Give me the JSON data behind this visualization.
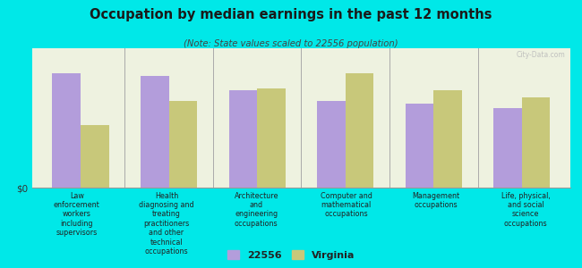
{
  "title": "Occupation by median earnings in the past 12 months",
  "subtitle": "(Note: State values scaled to 22556 population)",
  "background_color": "#00e8e8",
  "plot_bg_color": "#eef2e0",
  "plot_bg_top": "#f5f8ec",
  "categories": [
    "Law\nenforcement\nworkers\nincluding\nsupervisors",
    "Health\ndiagnosing and\ntreating\npractitioners\nand other\ntechnical\noccupations",
    "Architecture\nand\nengineering\noccupations",
    "Computer and\nmathematical\noccupations",
    "Management\noccupations",
    "Life, physical,\nand social\nscience\noccupations"
  ],
  "values_22556": [
    0.82,
    0.8,
    0.7,
    0.62,
    0.6,
    0.57
  ],
  "values_virginia": [
    0.45,
    0.62,
    0.71,
    0.82,
    0.7,
    0.65
  ],
  "color_22556": "#b39ddb",
  "color_virginia": "#c8c87a",
  "ylabel": "$0",
  "legend_label_1": "22556",
  "legend_label_2": "Virginia",
  "watermark": "City-Data.com"
}
